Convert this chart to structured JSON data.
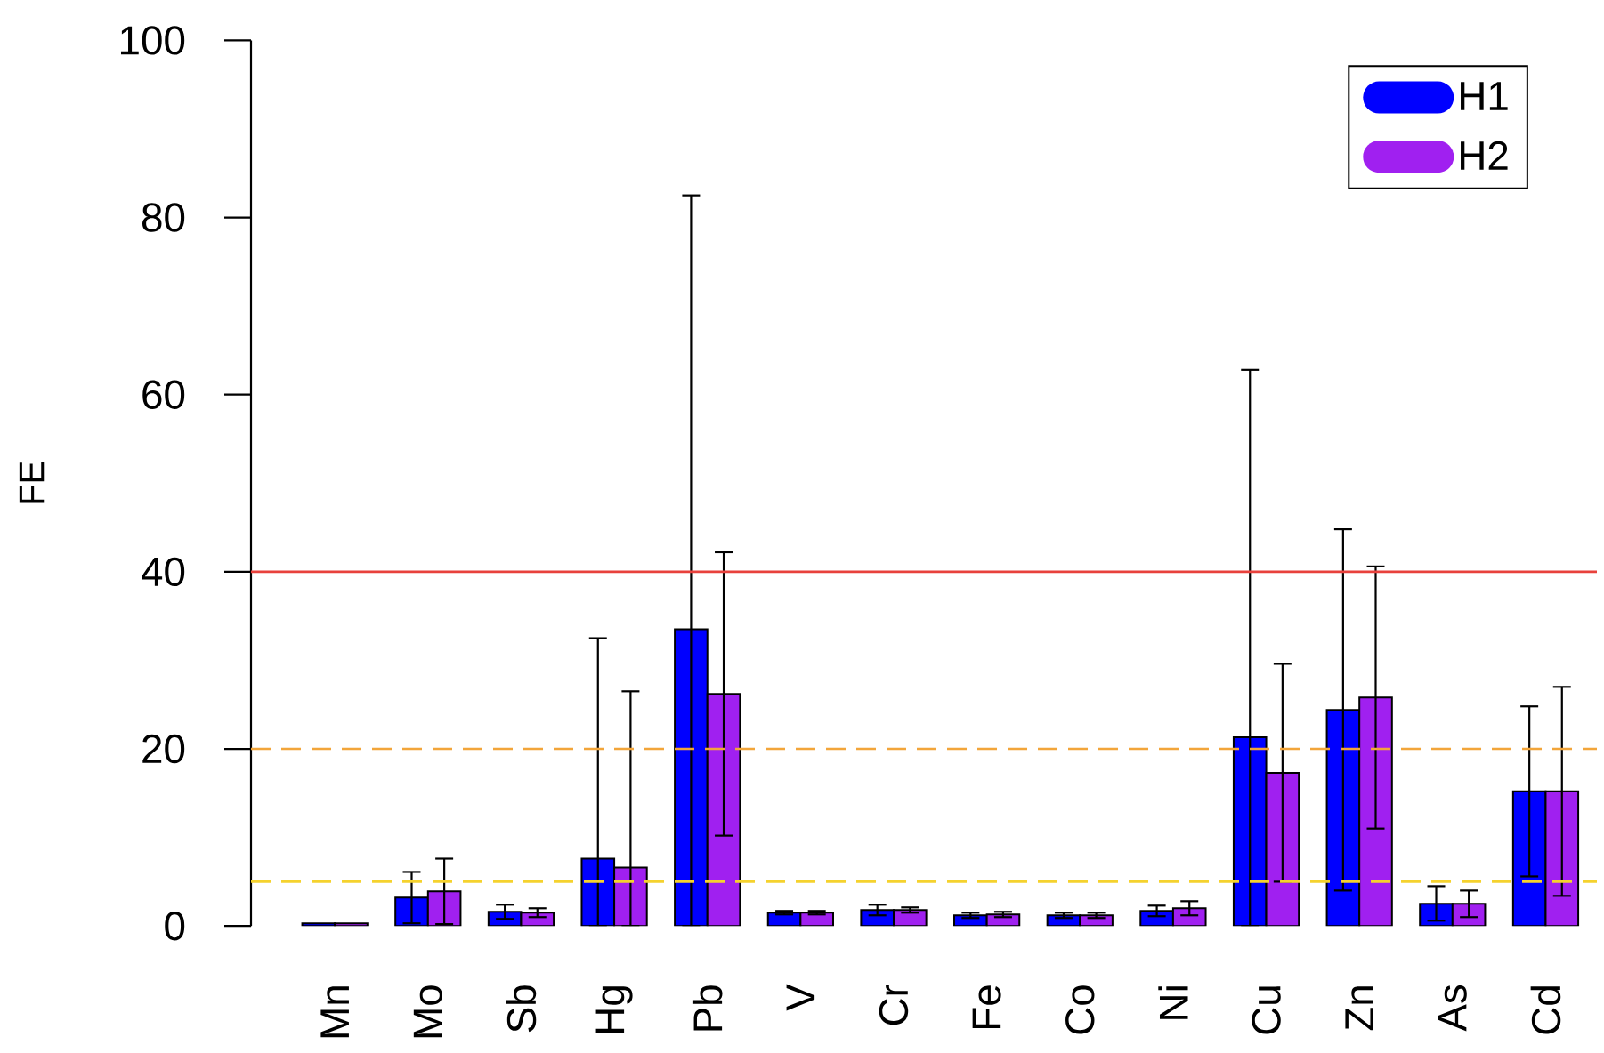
{
  "chart_data": {
    "type": "bar",
    "ylabel": "FE",
    "categories": [
      "Mn",
      "Mo",
      "Sb",
      "Hg",
      "Pb",
      "V",
      "Cr",
      "Fe",
      "Co",
      "Ni",
      "Cu",
      "Zn",
      "As",
      "Cd"
    ],
    "series": [
      {
        "name": "H1",
        "color": "#0000ff",
        "values": [
          0.3,
          3.2,
          1.6,
          7.6,
          33.5,
          1.5,
          1.8,
          1.2,
          1.2,
          1.7,
          21.3,
          24.4,
          2.5,
          15.2
        ],
        "errors": [
          null,
          [
            0.3,
            6.1
          ],
          [
            0.8,
            2.4
          ],
          [
            0,
            32.5
          ],
          [
            0,
            82.5
          ],
          [
            1.3,
            1.7
          ],
          [
            1.2,
            2.4
          ],
          [
            0.9,
            1.5
          ],
          [
            0.9,
            1.5
          ],
          [
            1.1,
            2.3
          ],
          [
            0,
            62.8
          ],
          [
            4.0,
            44.8
          ],
          [
            0.6,
            4.5
          ],
          [
            5.6,
            24.8
          ]
        ]
      },
      {
        "name": "H2",
        "color": "#a020f0",
        "values": [
          0.3,
          3.9,
          1.5,
          6.6,
          26.2,
          1.5,
          1.8,
          1.3,
          1.2,
          2.0,
          17.3,
          25.8,
          2.5,
          15.2
        ],
        "errors": [
          null,
          [
            0.2,
            7.6
          ],
          [
            1.0,
            2.0
          ],
          [
            0,
            26.5
          ],
          [
            10.2,
            42.2
          ],
          [
            1.3,
            1.7
          ],
          [
            1.5,
            2.1
          ],
          [
            1.0,
            1.6
          ],
          [
            0.9,
            1.5
          ],
          [
            1.2,
            2.8
          ],
          [
            5.0,
            29.6
          ],
          [
            11.0,
            40.6
          ],
          [
            1.0,
            4.0
          ],
          [
            3.4,
            27.0
          ]
        ]
      }
    ],
    "ylim": [
      0,
      100
    ],
    "yticks": [
      0,
      20,
      40,
      60,
      80,
      100
    ],
    "legend": "top right",
    "ref_lines": [
      {
        "axis": "y",
        "value": 40,
        "color": "#e8413c",
        "line_style": "solid"
      },
      {
        "axis": "y",
        "value": 20,
        "color": "#f2a53a",
        "line_style": "dashed"
      },
      {
        "axis": "y",
        "value": 5,
        "color": "#f5d22e",
        "line_style": "dashed"
      }
    ]
  }
}
